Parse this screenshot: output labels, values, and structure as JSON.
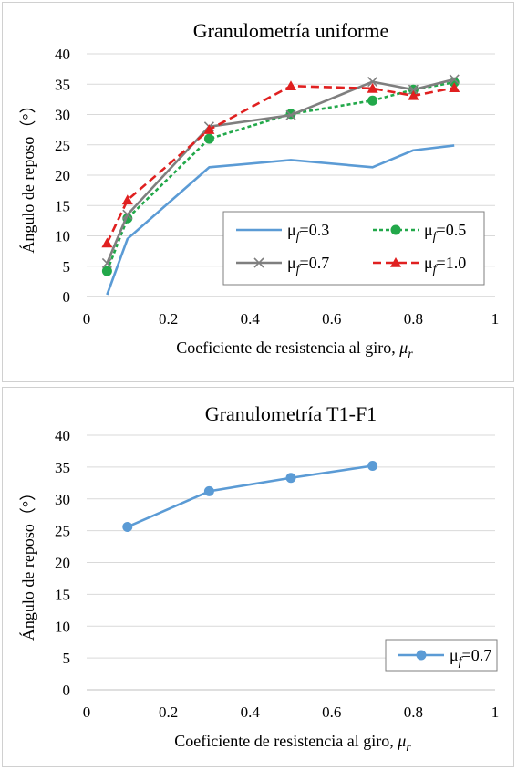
{
  "chart_data": [
    {
      "type": "line",
      "title": "Granulometría uniforme",
      "xlabel": "Coeficiente de resistencia al giro,",
      "xlabel_symbol": "μ",
      "xlabel_sub": "r",
      "ylabel": "Ángulo de reposo（°）",
      "xlim": [
        0,
        1
      ],
      "ylim": [
        0,
        40
      ],
      "xticks": [
        "0",
        "0.2",
        "0.4",
        "0.6",
        "0.8",
        "1"
      ],
      "yticks": [
        "0",
        "5",
        "10",
        "15",
        "20",
        "25",
        "30",
        "35",
        "40"
      ],
      "grid": true,
      "legend": "bottom-right, two columns, boxed",
      "series": [
        {
          "name": "μf=0.3",
          "legend_main": "μ",
          "legend_sub": "f",
          "legend_val": "=0.3",
          "color": "#5b9bd5",
          "dash": "solid",
          "marker": "none",
          "x": [
            0.05,
            0.1,
            0.3,
            0.5,
            0.7,
            0.8,
            0.9
          ],
          "y": [
            0.3,
            9.5,
            21.3,
            22.5,
            21.3,
            24.1,
            24.9
          ]
        },
        {
          "name": "μf=0.5",
          "legend_main": "μ",
          "legend_sub": "f",
          "legend_val": "=0.5",
          "color": "#22a84a",
          "dash": "dotted",
          "marker": "circle",
          "x": [
            0.05,
            0.1,
            0.3,
            0.5,
            0.7,
            0.8,
            0.9
          ],
          "y": [
            4.2,
            12.9,
            26.0,
            30.1,
            32.3,
            34.1,
            35.3
          ]
        },
        {
          "name": "μf=0.7",
          "legend_main": "μ",
          "legend_sub": "f",
          "legend_val": "=0.7",
          "color": "#7f7f7f",
          "dash": "solid",
          "marker": "x",
          "x": [
            0.05,
            0.1,
            0.3,
            0.5,
            0.7,
            0.8,
            0.9
          ],
          "y": [
            5.5,
            13.5,
            28.0,
            29.9,
            35.4,
            34.1,
            35.8
          ]
        },
        {
          "name": "μf=1.0",
          "legend_main": "μ",
          "legend_sub": "f",
          "legend_val": "=1.0",
          "color": "#e02020",
          "dash": "dashed",
          "marker": "triangle",
          "x": [
            0.05,
            0.1,
            0.3,
            0.5,
            0.7,
            0.8,
            0.9
          ],
          "y": [
            8.8,
            15.9,
            27.5,
            34.7,
            34.3,
            33.1,
            34.4
          ]
        }
      ]
    },
    {
      "type": "line",
      "title": "Granulometría T1-F1",
      "xlabel": "Coeficiente de resistencia al giro,",
      "xlabel_symbol": "μ",
      "xlabel_sub": "r",
      "ylabel": "Ángulo de reposo（°）",
      "xlim": [
        0,
        1
      ],
      "ylim": [
        0,
        40
      ],
      "xticks": [
        "0",
        "0.2",
        "0.4",
        "0.6",
        "0.8",
        "1"
      ],
      "yticks": [
        "0",
        "5",
        "10",
        "15",
        "20",
        "25",
        "30",
        "35",
        "40"
      ],
      "grid": true,
      "legend": "bottom-right, boxed",
      "series": [
        {
          "name": "μf=0.7",
          "legend_main": "μ",
          "legend_sub": "f",
          "legend_val": "=0.7",
          "color": "#5b9bd5",
          "dash": "solid",
          "marker": "circle",
          "x": [
            0.1,
            0.3,
            0.5,
            0.7
          ],
          "y": [
            25.6,
            31.2,
            33.3,
            35.2
          ]
        }
      ]
    }
  ]
}
